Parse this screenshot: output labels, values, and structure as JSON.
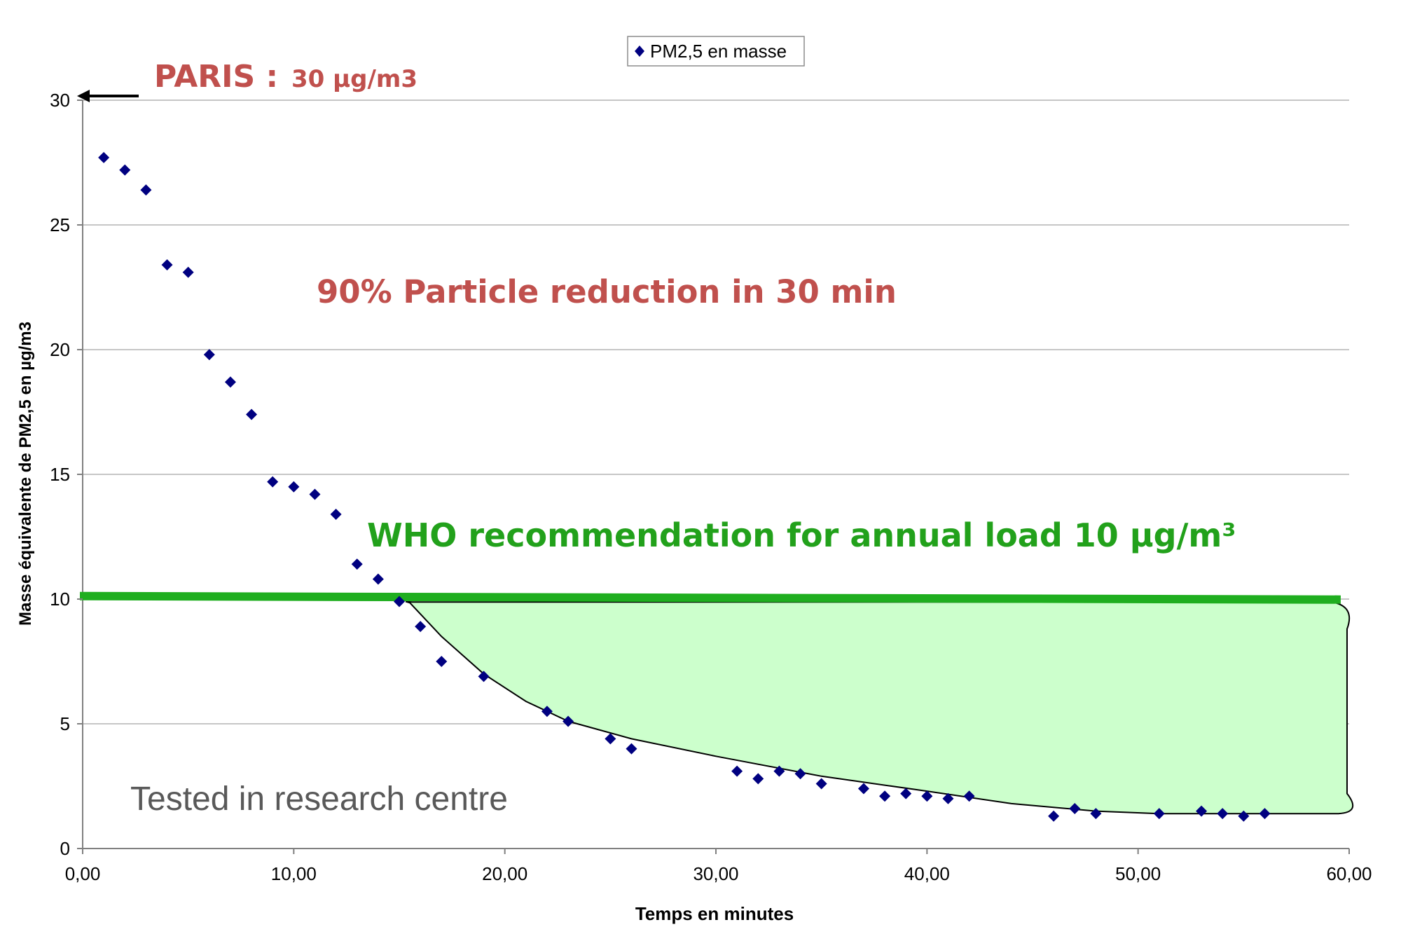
{
  "chart_data": {
    "type": "scatter",
    "title": "",
    "xlabel": "Temps en minutes",
    "ylabel": "Masse équivalente de PM2,5 en µg/m3",
    "xlim": [
      0,
      60
    ],
    "ylim": [
      0,
      30
    ],
    "x_ticks": [
      "0,00",
      "10,00",
      "20,00",
      "30,00",
      "40,00",
      "50,00",
      "60,00"
    ],
    "y_ticks": [
      "0",
      "5",
      "10",
      "15",
      "20",
      "25",
      "30"
    ],
    "grid": "horizontal",
    "legend": {
      "placement": "top-center",
      "entries": [
        "PM2,5 en masse"
      ]
    },
    "series": [
      {
        "name": "PM2,5 en masse",
        "marker": "diamond",
        "color": "#000080",
        "points": [
          [
            1,
            27.7
          ],
          [
            2,
            27.2
          ],
          [
            3,
            26.4
          ],
          [
            4,
            23.4
          ],
          [
            5,
            23.1
          ],
          [
            6,
            19.8
          ],
          [
            7,
            18.7
          ],
          [
            8,
            17.4
          ],
          [
            9,
            14.7
          ],
          [
            10,
            14.5
          ],
          [
            11,
            14.2
          ],
          [
            12,
            13.4
          ],
          [
            13,
            11.4
          ],
          [
            14,
            10.8
          ],
          [
            15,
            9.9
          ],
          [
            16,
            8.9
          ],
          [
            17,
            7.5
          ],
          [
            19,
            6.9
          ],
          [
            22,
            5.5
          ],
          [
            23,
            5.1
          ],
          [
            25,
            4.4
          ],
          [
            26,
            4.0
          ],
          [
            31,
            3.1
          ],
          [
            32,
            2.8
          ],
          [
            33,
            3.1
          ],
          [
            34,
            3.0
          ],
          [
            35,
            2.6
          ],
          [
            37,
            2.4
          ],
          [
            38,
            2.1
          ],
          [
            39,
            2.2
          ],
          [
            40,
            2.1
          ],
          [
            41,
            2.0
          ],
          [
            42,
            2.1
          ],
          [
            46,
            1.3
          ],
          [
            47,
            1.6
          ],
          [
            48,
            1.4
          ],
          [
            51,
            1.4
          ],
          [
            53,
            1.5
          ],
          [
            54,
            1.4
          ],
          [
            55,
            1.3
          ],
          [
            56,
            1.4
          ]
        ]
      }
    ],
    "reference_line": {
      "y": 10,
      "color": "#1fae1f"
    },
    "annotations": {
      "paris_label": "PARIS :",
      "paris_value": "30 µg/m3",
      "reduction": "90% Particle reduction in 30 min",
      "who": "WHO recommendation for annual load 10 µg/m³",
      "tested": "Tested in research centre"
    },
    "colors": {
      "annotation_red": "#c0504d",
      "annotation_green": "#22a11b",
      "annotation_gray": "#595959",
      "highlight_fill": "#ccffcc",
      "gridline": "#b3b3b3"
    }
  }
}
